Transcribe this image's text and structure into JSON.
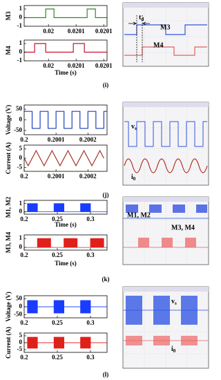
{
  "chart_data": [
    {
      "type": "line",
      "ylabel": "M3",
      "x": [
        0.019956,
        0.019995,
        0.019995,
        0.02001,
        0.02001,
        0.02007,
        0.02007,
        0.020085,
        0.020085,
        0.020106
      ],
      "series": [
        {
          "color": "#2e8b22",
          "values": [
            0,
            0,
            1,
            1,
            0,
            0,
            1,
            1,
            0,
            0
          ]
        }
      ],
      "xlim": [
        0.019956,
        0.020106
      ],
      "ylim": [
        -1,
        1.4
      ],
      "xticks": [
        0.02,
        {
          "value": 0.02005,
          "label": "0.0201"
        },
        0.0201
      ],
      "yticks": [
        1,
        0,
        -1
      ]
    },
    {
      "type": "line",
      "ylabel": "M4",
      "xlabel": "Time (s)",
      "x": [
        0.019956,
        0.019975,
        0.019975,
        0.019995,
        0.019995,
        0.020045,
        0.020045,
        0.020065,
        0.020065,
        0.020106
      ],
      "series": [
        {
          "color": "#c8102e",
          "values": [
            0,
            0,
            1,
            1,
            0,
            0,
            1,
            1,
            0,
            0
          ]
        }
      ],
      "xlim": [
        0.019956,
        0.020106
      ],
      "ylim": [
        -1,
        1.4
      ],
      "xticks": [
        0.02,
        {
          "value": 0.02005,
          "label": "0.0201"
        },
        0.0201
      ],
      "yticks": [
        1,
        0,
        -1
      ]
    },
    {
      "type": "line",
      "ylabel": "Voltage (V)",
      "x": [
        0.2,
        0.200025,
        0.200025,
        0.20005,
        0.20005,
        0.200075,
        0.200075,
        0.2001,
        0.2001,
        0.200125,
        0.200125,
        0.20015,
        0.20015,
        0.200175,
        0.200175,
        0.2002,
        0.2002,
        0.200225,
        0.200225,
        0.20025,
        0.20025,
        0.20026
      ],
      "series": [
        {
          "color": "#1f3fbf",
          "values": [
            40,
            40,
            -40,
            -40,
            40,
            40,
            -40,
            -40,
            40,
            40,
            -40,
            -40,
            40,
            40,
            -40,
            -40,
            40,
            40,
            -40,
            -40,
            40,
            40
          ]
        }
      ],
      "xlim": [
        0.2,
        0.20026
      ],
      "ylim": [
        -70,
        70
      ],
      "xticks": [
        0.2,
        0.2001,
        0.2002
      ],
      "yticks": [
        50,
        0,
        -50
      ]
    },
    {
      "type": "line",
      "ylabel": "Current (A)",
      "x": [
        0.2,
        0.2000125,
        0.200025,
        0.2000375,
        0.20005,
        0.2000625,
        0.200075,
        0.2000875,
        0.2001,
        0.2001125,
        0.200125,
        0.2001375,
        0.20015,
        0.2001625,
        0.200175,
        0.2001875,
        0.2002,
        0.2002125,
        0.200225,
        0.2002375,
        0.20025
      ],
      "series": [
        {
          "color": "#a0301c",
          "values": [
            0,
            -4,
            0,
            4,
            0,
            -4,
            0,
            4,
            0,
            -4,
            0,
            4,
            0,
            -4,
            0,
            4,
            0,
            -4,
            0,
            4,
            0
          ]
        }
      ],
      "xlim": [
        0.2,
        0.20026
      ],
      "ylim": [
        -7,
        7
      ],
      "xticks": [
        0.2,
        0.2001,
        0.2002
      ],
      "yticks": [
        5,
        0,
        -5
      ]
    },
    {
      "type": "area",
      "ylabel": "M1, M2",
      "xlabel": "Time (s)",
      "x": [
        0.2,
        0.205,
        0.205,
        0.22,
        0.22,
        0.245,
        0.245,
        0.26,
        0.26,
        0.285,
        0.285,
        0.3,
        0.3,
        0.325
      ],
      "series": [
        {
          "color": "#1a3cff",
          "values": [
            0,
            0,
            1,
            1,
            0,
            0,
            1,
            1,
            0,
            0,
            1,
            1,
            0,
            0
          ]
        }
      ],
      "xlim": [
        0.2,
        0.325
      ],
      "ylim": [
        -0.3,
        1.4
      ],
      "xticks": [
        0.2,
        0.25,
        0.3
      ],
      "yticks": [
        1,
        0
      ]
    },
    {
      "type": "area",
      "ylabel": "M3, M4",
      "xlabel": "Time (s)",
      "x": [
        0.2,
        0.22,
        0.22,
        0.24,
        0.24,
        0.26,
        0.26,
        0.28,
        0.28,
        0.3,
        0.3,
        0.32,
        0.32,
        0.325
      ],
      "series": [
        {
          "color": "#e0201a",
          "values": [
            0,
            0,
            1,
            1,
            0,
            0,
            1,
            1,
            0,
            0,
            1,
            1,
            0,
            0
          ]
        }
      ],
      "xlim": [
        0.2,
        0.325
      ],
      "ylim": [
        -0.3,
        1.4
      ],
      "xticks": [
        0.2,
        0.25,
        0.3
      ],
      "yticks": [
        1,
        0
      ]
    },
    {
      "type": "area",
      "ylabel": "Voltage (V)",
      "x": [
        0.2,
        0.205,
        0.205,
        0.22,
        0.22,
        0.245,
        0.245,
        0.26,
        0.26,
        0.285,
        0.285,
        0.3,
        0.3,
        0.325
      ],
      "series": [
        {
          "color": "#1a3cff",
          "values": [
            0,
            0,
            40,
            40,
            0,
            0,
            40,
            40,
            0,
            0,
            40,
            40,
            0,
            0
          ]
        },
        {
          "color": "#1a3cff",
          "values": [
            0,
            0,
            -40,
            -40,
            0,
            0,
            -40,
            -40,
            0,
            0,
            -40,
            -40,
            0,
            0
          ]
        }
      ],
      "xlim": [
        0.2,
        0.325
      ],
      "ylim": [
        -70,
        70
      ],
      "xticks": [
        0.2,
        0.25,
        0.3
      ],
      "yticks": [
        50,
        0,
        -50
      ]
    },
    {
      "type": "area",
      "ylabel": "Current (A)",
      "x": [
        0.2,
        0.205,
        0.205,
        0.22,
        0.22,
        0.245,
        0.245,
        0.26,
        0.26,
        0.285,
        0.285,
        0.3,
        0.3,
        0.325
      ],
      "series": [
        {
          "color": "#e0201a",
          "values": [
            0,
            0,
            4,
            4,
            0,
            0,
            4,
            4,
            0,
            0,
            4,
            4,
            0,
            0
          ]
        },
        {
          "color": "#e0201a",
          "values": [
            0,
            0,
            -4,
            -4,
            0,
            0,
            -4,
            -4,
            0,
            0,
            -4,
            -4,
            0,
            0
          ]
        }
      ],
      "xlim": [
        0.2,
        0.325
      ],
      "ylim": [
        -7,
        7
      ],
      "xticks": [
        0.2,
        0.25,
        0.3
      ],
      "yticks": [
        5,
        0,
        -5
      ]
    }
  ],
  "scopes": [
    {
      "labels": [
        {
          "text": "t",
          "sub": "d"
        },
        {
          "text": "M3"
        },
        {
          "text": "M4"
        }
      ]
    },
    {
      "labels": [
        {
          "text": "v",
          "sub": "s"
        },
        {
          "text": "i",
          "sub": "0"
        }
      ]
    },
    {
      "labels": [
        {
          "text": "M1, M2"
        },
        {
          "text": "M3, M4"
        }
      ]
    },
    {
      "labels": [
        {
          "text": "v",
          "sub": "s"
        },
        {
          "text": "i",
          "sub": "0"
        }
      ]
    }
  ],
  "captions": [
    "(i)",
    "(j)",
    "(k)",
    "(l)"
  ]
}
